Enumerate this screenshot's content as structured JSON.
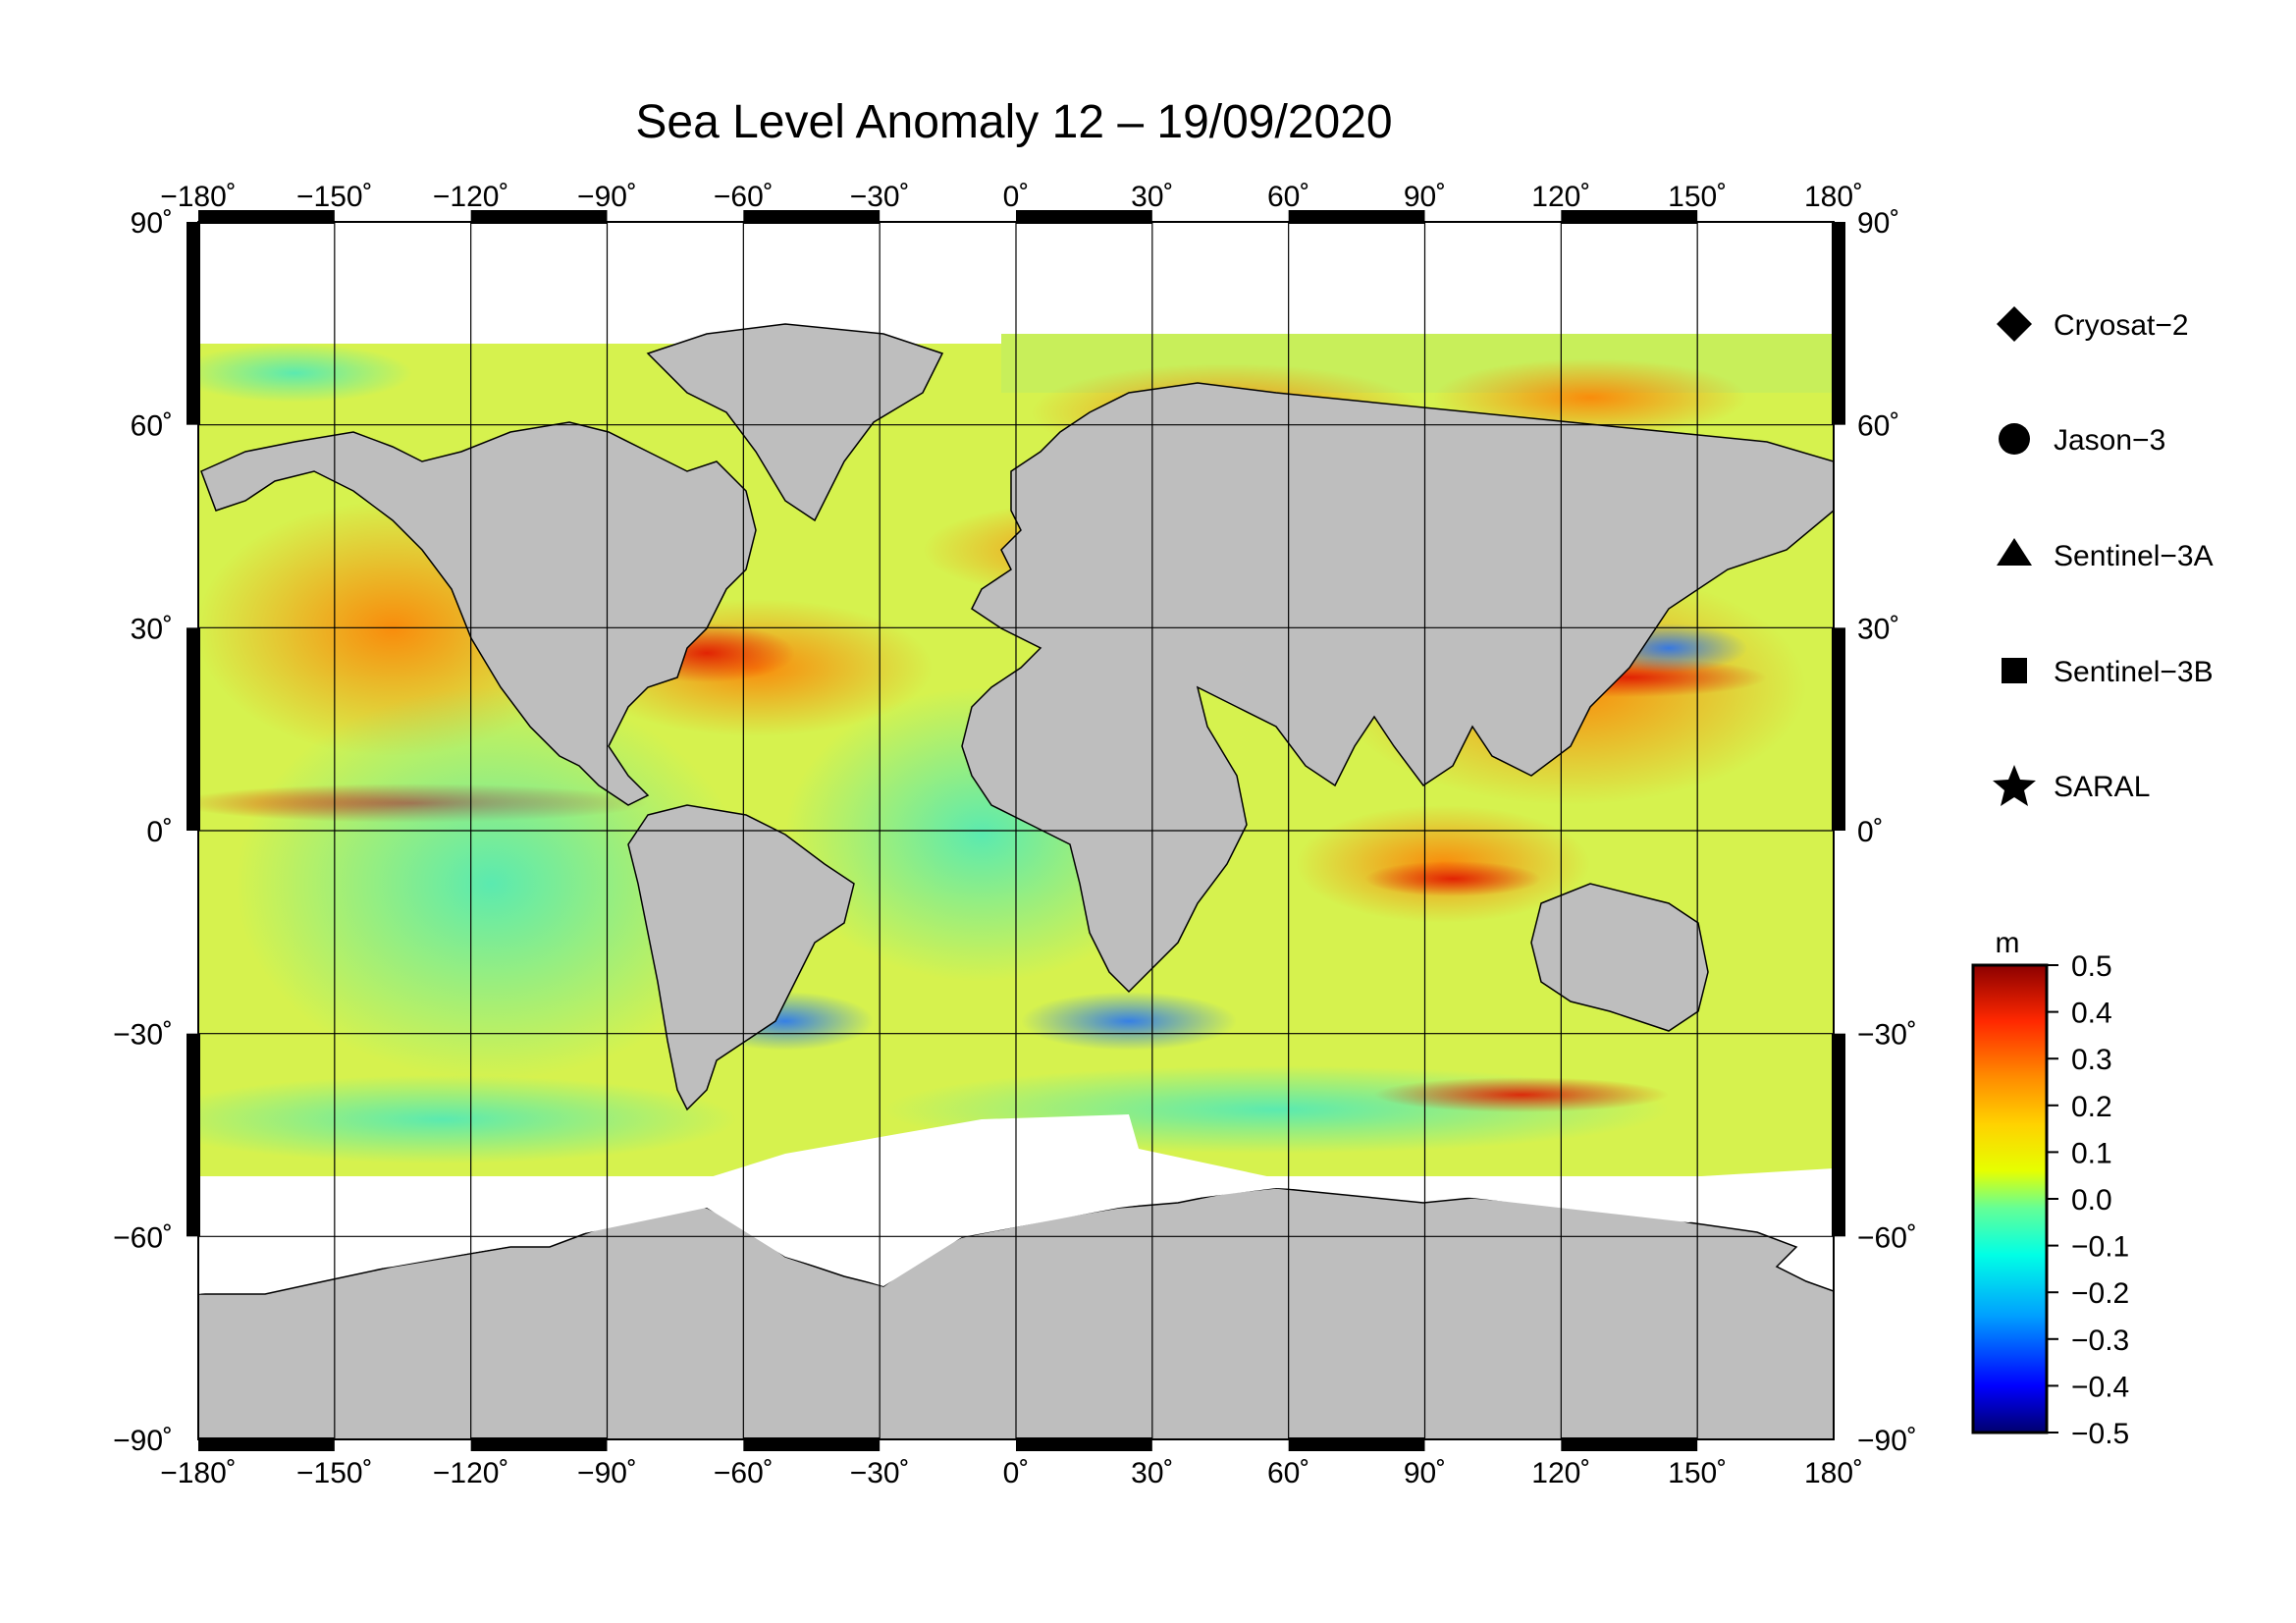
{
  "title": "Sea Level Anomaly 12 – 19/09/2020",
  "axes": {
    "lon_ticks": [
      "−180˚",
      "−150˚",
      "−120˚",
      "−90˚",
      "−60˚",
      "−30˚",
      "0˚",
      "30˚",
      "60˚",
      "90˚",
      "120˚",
      "150˚",
      "180˚"
    ],
    "lat_ticks_left": [
      "90˚",
      "60˚",
      "30˚",
      "0˚",
      "−30˚",
      "−60˚",
      "−90˚"
    ],
    "lat_ticks_right": [
      "90˚",
      "60˚",
      "30˚",
      "0˚",
      "−30˚",
      "−60˚",
      "−90˚"
    ],
    "lon_range": [
      -180,
      180
    ],
    "lat_range": [
      -90,
      90
    ],
    "grid": true
  },
  "legend": {
    "items": [
      {
        "label": "Cryosat−2",
        "icon": "diamond-icon"
      },
      {
        "label": "Jason−3",
        "icon": "circle-icon"
      },
      {
        "label": "Sentinel−3A",
        "icon": "triangle-icon"
      },
      {
        "label": "Sentinel−3B",
        "icon": "square-icon"
      },
      {
        "label": "SARAL",
        "icon": "star-icon"
      }
    ]
  },
  "colorbar": {
    "unit": "m",
    "ticks": [
      "0.5",
      "0.4",
      "0.3",
      "0.2",
      "0.1",
      "0.0",
      "−0.1",
      "−0.2",
      "−0.3",
      "−0.4",
      "−0.5"
    ],
    "range": [
      -0.5,
      0.5
    ],
    "colors": [
      "#00006e",
      "#0000ff",
      "#00a0ff",
      "#00ffe6",
      "#64ff96",
      "#e6ff00",
      "#ffd200",
      "#ff8c00",
      "#ff2800",
      "#8c0000"
    ]
  },
  "colors": {
    "land": "#bebebe",
    "ocean_base": "#dcf54a",
    "ice": "#ffffff"
  }
}
